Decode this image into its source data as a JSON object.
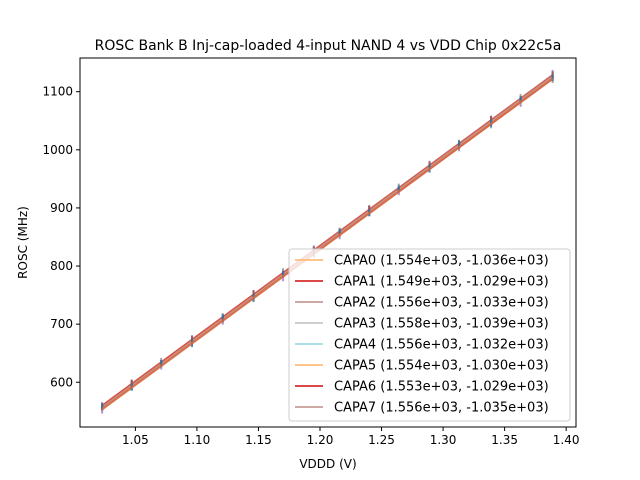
{
  "chart_data": {
    "type": "line",
    "title": "ROSC Bank B Inj-cap-loaded 4-input NAND 4 vs VDD Chip 0x22c5a",
    "xlabel": "VDDD (V)",
    "ylabel": "ROSC (MHz)",
    "xlim": [
      1.005,
      1.408
    ],
    "ylim": [
      523,
      1158
    ],
    "xticks": [
      1.05,
      1.1,
      1.15,
      1.2,
      1.25,
      1.3,
      1.35,
      1.4
    ],
    "xtick_labels": [
      "1.05",
      "1.10",
      "1.15",
      "1.20",
      "1.25",
      "1.30",
      "1.35",
      "1.40"
    ],
    "yticks": [
      600,
      700,
      800,
      900,
      1000,
      1100
    ],
    "ytick_labels": [
      "600",
      "700",
      "800",
      "900",
      "1000",
      "1100"
    ],
    "legend_position": "lower-right",
    "measured_x": [
      1.023,
      1.047,
      1.071,
      1.096,
      1.121,
      1.146,
      1.17,
      1.195,
      1.216,
      1.24,
      1.264,
      1.289,
      1.313,
      1.339,
      1.363,
      1.389
    ],
    "series": [
      {
        "name": "CAPA0",
        "label": "CAPA0 (1.554e+03, -1.036e+03)",
        "slope": 1554,
        "intercept": -1036,
        "color": "#ffbb78"
      },
      {
        "name": "CAPA1",
        "label": "CAPA1 (1.549e+03, -1.029e+03)",
        "slope": 1549,
        "intercept": -1029,
        "color": "#d62728"
      },
      {
        "name": "CAPA2",
        "label": "CAPA2 (1.556e+03, -1.033e+03)",
        "slope": 1556,
        "intercept": -1033,
        "color": "#c49c94"
      },
      {
        "name": "CAPA3",
        "label": "CAPA3 (1.558e+03, -1.039e+03)",
        "slope": 1558,
        "intercept": -1039,
        "color": "#c7c7c7"
      },
      {
        "name": "CAPA4",
        "label": "CAPA4 (1.556e+03, -1.032e+03)",
        "slope": 1556,
        "intercept": -1032,
        "color": "#9edae5"
      },
      {
        "name": "CAPA5",
        "label": "CAPA5 (1.554e+03, -1.030e+03)",
        "slope": 1554,
        "intercept": -1030,
        "color": "#ffbb78"
      },
      {
        "name": "CAPA6",
        "label": "CAPA6 (1.553e+03, -1.029e+03)",
        "slope": 1553,
        "intercept": -1029,
        "color": "#d62728"
      },
      {
        "name": "CAPA7",
        "label": "CAPA7 (1.556e+03, -1.035e+03)",
        "slope": 1556,
        "intercept": -1035,
        "color": "#c49c94"
      }
    ],
    "fit_line_color": "#d46a43",
    "marker_colors": [
      "#9467bd",
      "#7f7f7f",
      "#8c564b",
      "#1f77b4"
    ]
  }
}
